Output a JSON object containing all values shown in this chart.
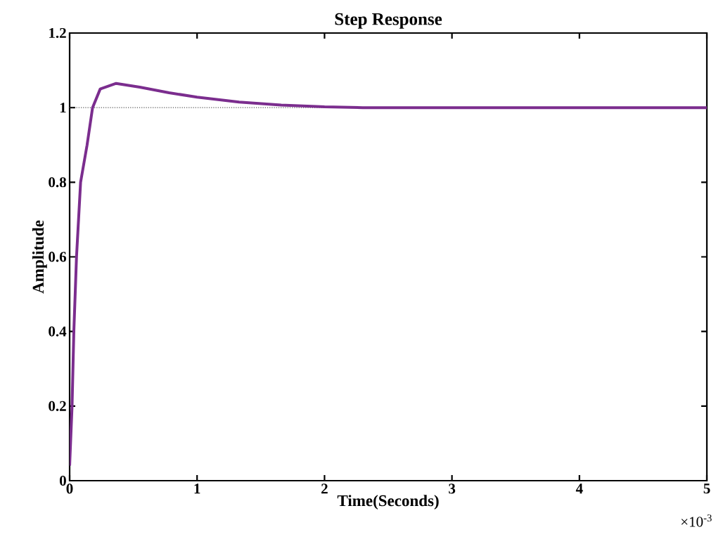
{
  "chart_data": {
    "type": "line",
    "title": "Step Response",
    "xlabel": "Time(Seconds)",
    "ylabel": "Amplitude",
    "annotations": [
      "×10$^{-3}$"
    ],
    "series": [
      {
        "color": "#7b2d8e",
        "x": [
          0,
          0.019,
          0.033,
          0.054,
          0.086,
          0.137,
          0.18,
          0.24,
          0.365,
          0.55,
          0.78,
          1.0,
          1.33,
          1.66,
          2.0,
          2.3,
          3,
          4,
          5
        ],
        "values": [
          0.04,
          0.2,
          0.4,
          0.6,
          0.8,
          0.9,
          1.0,
          1.05,
          1.065,
          1.055,
          1.04,
          1.028,
          1.015,
          1.007,
          1.002,
          1.0,
          1.0,
          1.0,
          1.0
        ]
      }
    ],
    "ref_lines": [
      {
        "axis": "y",
        "value": 1,
        "line_style": "dotted",
        "color": "#555555"
      }
    ],
    "xlim": [
      0,
      5
    ],
    "ylim": [
      0,
      1.2
    ],
    "xticks": [
      0,
      1,
      2,
      3,
      4,
      5
    ],
    "yticks": [
      0,
      0.2,
      0.4,
      0.6,
      0.8,
      1,
      1.2
    ]
  }
}
